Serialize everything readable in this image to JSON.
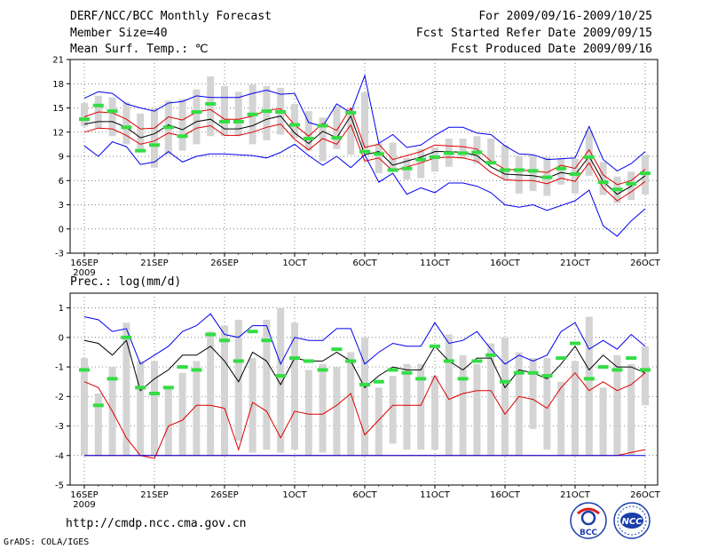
{
  "header": {
    "title": "DERF/NCC/BCC Monthly Forecast",
    "member_size": "Member Size=40",
    "variable": "Mean Surf. Temp.: ℃",
    "period": "For 2009/09/16-2009/10/25",
    "started": "Fcst Started Refer Date 2009/09/15",
    "produced": "Fcst Produced Date 2009/09/16"
  },
  "footer": {
    "url": "http://cmdp.ncc.cma.gov.cn",
    "credit": "GrADS: COLA/IGES",
    "logo_bcc": "BCC",
    "logo_ncc": "NCC"
  },
  "colors": {
    "box": "#d4d4d4",
    "green": "#33dd44",
    "blue": "#0000ee",
    "red": "#dd0000",
    "black": "#000000"
  },
  "chart_data": [
    {
      "type": "line",
      "title": "Mean Surf. Temp.: ℃",
      "ylim": [
        -3,
        21
      ],
      "yticks": [
        21,
        18,
        15,
        12,
        9,
        6,
        3,
        0,
        -3
      ],
      "x_ticks": [
        {
          "day": 1,
          "label": "16SEP",
          "sublabel": "2009"
        },
        {
          "day": 6,
          "label": "21SEP"
        },
        {
          "day": 11,
          "label": "26SEP"
        },
        {
          "day": 16,
          "label": "1OCT"
        },
        {
          "day": 21,
          "label": "6OCT"
        },
        {
          "day": 26,
          "label": "11OCT"
        },
        {
          "day": 31,
          "label": "16OCT"
        },
        {
          "day": 36,
          "label": "21OCT"
        },
        {
          "day": 41,
          "label": "26OCT"
        }
      ],
      "grid": true,
      "boxes": [
        [
          12.7,
          15.6
        ],
        [
          12.4,
          16.5
        ],
        [
          11.5,
          16.3
        ],
        [
          10.5,
          15.7
        ],
        [
          9.7,
          14.3
        ],
        [
          7.6,
          15.0
        ],
        [
          9.2,
          15.9
        ],
        [
          9.7,
          16.1
        ],
        [
          10.5,
          17.3
        ],
        [
          11.5,
          18.9
        ],
        [
          11.5,
          17.7
        ],
        [
          11.5,
          17.0
        ],
        [
          10.5,
          17.9
        ],
        [
          11.0,
          17.7
        ],
        [
          11.7,
          17.5
        ],
        [
          11.3,
          15.5
        ],
        [
          9.7,
          14.6
        ],
        [
          8.4,
          13.8
        ],
        [
          9.9,
          15.2
        ],
        [
          9.2,
          15.0
        ],
        [
          9.9,
          16.9
        ],
        [
          6.9,
          10.6
        ],
        [
          7.4,
          10.7
        ],
        [
          6.1,
          8.8
        ],
        [
          6.3,
          9.9
        ],
        [
          7.1,
          10.1
        ],
        [
          7.7,
          11.2
        ],
        [
          8.7,
          11.2
        ],
        [
          8.1,
          11.5
        ],
        [
          8.2,
          11.2
        ],
        [
          6.2,
          10.4
        ],
        [
          4.4,
          9.1
        ],
        [
          4.7,
          9.2
        ],
        [
          4.1,
          8.9
        ],
        [
          5.5,
          8.8
        ],
        [
          4.4,
          8.7
        ],
        [
          6.6,
          12.2
        ],
        [
          4.2,
          8.3
        ],
        [
          3.2,
          6.5
        ],
        [
          3.6,
          7.1
        ],
        [
          4.3,
          9.2
        ]
      ],
      "series": [
        {
          "name": "ensemble mean",
          "color": "green",
          "style": "marker",
          "values": [
            13.6,
            15.3,
            14.6,
            12.6,
            9.7,
            10.4,
            12.6,
            11.5,
            14.5,
            15.5,
            13.3,
            13.3,
            14.2,
            14.6,
            14.5,
            12.9,
            11.2,
            12.8,
            11.3,
            14.4,
            9.6,
            9.3,
            7.3,
            7.5,
            8.6,
            8.9,
            9.4,
            9.4,
            9.5,
            8.2,
            7.3,
            7.3,
            7.2,
            6.4,
            7.5,
            6.8,
            8.9,
            5.8,
            4.9,
            5.6,
            6.9
          ]
        },
        {
          "name": "blue max",
          "color": "blue",
          "style": "line",
          "values": [
            16.2,
            17.0,
            16.8,
            15.5,
            15.0,
            14.6,
            15.6,
            15.8,
            16.5,
            16.3,
            16.3,
            16.3,
            16.8,
            17.2,
            16.7,
            16.8,
            13.2,
            12.7,
            15.5,
            14.4,
            19.0,
            10.6,
            11.7,
            10.1,
            10.4,
            11.6,
            12.6,
            12.6,
            11.9,
            11.7,
            10.3,
            9.3,
            9.2,
            8.6,
            8.7,
            8.8,
            12.7,
            8.6,
            7.2,
            8.1,
            9.6
          ]
        },
        {
          "name": "red upper",
          "color": "red",
          "style": "line",
          "values": [
            13.9,
            14.5,
            14.4,
            13.6,
            12.4,
            12.5,
            13.9,
            13.5,
            14.5,
            14.8,
            13.6,
            13.6,
            14.0,
            14.7,
            14.9,
            12.9,
            11.5,
            13.1,
            12.2,
            15.0,
            10.1,
            10.5,
            8.6,
            9.1,
            9.6,
            10.4,
            10.3,
            10.2,
            9.9,
            8.4,
            7.4,
            7.3,
            7.2,
            7.0,
            7.9,
            7.5,
            9.8,
            6.7,
            5.5,
            6.0,
            7.4
          ]
        },
        {
          "name": "black mean",
          "color": "black",
          "style": "line",
          "values": [
            13.0,
            13.3,
            13.3,
            12.6,
            11.3,
            11.8,
            12.9,
            12.3,
            13.3,
            13.6,
            12.4,
            12.4,
            12.8,
            13.6,
            14.0,
            11.9,
            10.6,
            12.1,
            11.3,
            14.0,
            9.2,
            9.6,
            7.9,
            8.4,
            8.9,
            9.6,
            9.6,
            9.5,
            9.1,
            7.7,
            6.8,
            6.7,
            6.6,
            6.3,
            7.0,
            6.7,
            9.0,
            5.9,
            4.3,
            5.3,
            6.6
          ]
        },
        {
          "name": "red lower",
          "color": "red",
          "style": "line",
          "values": [
            12.0,
            12.5,
            12.4,
            11.6,
            10.5,
            10.9,
            11.9,
            11.5,
            12.5,
            12.8,
            11.6,
            11.6,
            12.0,
            12.6,
            13.0,
            11.1,
            9.8,
            11.2,
            10.5,
            12.9,
            8.4,
            8.8,
            7.2,
            7.7,
            8.2,
            8.8,
            8.9,
            8.8,
            8.4,
            7.0,
            6.1,
            6.0,
            6.0,
            5.6,
            6.3,
            5.9,
            8.2,
            5.1,
            3.5,
            4.6,
            5.9
          ]
        },
        {
          "name": "blue min",
          "color": "blue",
          "style": "line",
          "values": [
            10.3,
            9.0,
            10.8,
            10.2,
            8.0,
            8.3,
            9.6,
            8.3,
            9.0,
            9.3,
            9.3,
            9.2,
            9.1,
            8.8,
            9.5,
            10.5,
            9.1,
            7.9,
            9.0,
            7.6,
            9.2,
            5.8,
            6.9,
            4.3,
            5.1,
            4.5,
            5.7,
            5.7,
            5.3,
            4.5,
            3.0,
            2.7,
            3.0,
            2.3,
            2.9,
            3.5,
            4.8,
            0.4,
            -0.9,
            1.0,
            2.5
          ]
        }
      ]
    },
    {
      "type": "line",
      "title": "Prec.: log(mm/d)",
      "ylim": [
        -5,
        1.5
      ],
      "yticks": [
        1,
        0,
        -1,
        -2,
        -3,
        -4,
        -5
      ],
      "x_ticks": [
        {
          "day": 1,
          "label": "16SEP",
          "sublabel": "2009"
        },
        {
          "day": 6,
          "label": "21SEP"
        },
        {
          "day": 11,
          "label": "26SEP"
        },
        {
          "day": 16,
          "label": "1OCT"
        },
        {
          "day": 21,
          "label": "6OCT"
        },
        {
          "day": 26,
          "label": "11OCT"
        },
        {
          "day": 31,
          "label": "16OCT"
        },
        {
          "day": 36,
          "label": "21OCT"
        },
        {
          "day": 41,
          "label": "26OCT"
        }
      ],
      "grid": true,
      "boxes": [
        [
          -4,
          -0.7
        ],
        [
          -4,
          -1.9
        ],
        [
          -4,
          -1.0
        ],
        [
          -4,
          0.5
        ],
        [
          -4,
          -0.8
        ],
        [
          -4,
          -0.8
        ],
        [
          -4,
          -1.7
        ],
        [
          -4,
          -1.2
        ],
        [
          -4,
          -0.8
        ],
        [
          -4,
          0.2
        ],
        [
          -4,
          0.4
        ],
        [
          -3.5,
          0.6
        ],
        [
          -3.9,
          -0.7
        ],
        [
          -3.8,
          0.6
        ],
        [
          -3.9,
          1.0
        ],
        [
          -3.8,
          0.5
        ],
        [
          -4,
          -1.1
        ],
        [
          -3.9,
          -0.9
        ],
        [
          -4,
          -1.0
        ],
        [
          -4,
          -0.5
        ],
        [
          -4,
          0.0
        ],
        [
          -4,
          -1.7
        ],
        [
          -3.6,
          -1.3
        ],
        [
          -3.8,
          -0.9
        ],
        [
          -3.8,
          -0.9
        ],
        [
          -3.8,
          -1.3
        ],
        [
          -4,
          0.1
        ],
        [
          -4,
          -0.6
        ],
        [
          -4,
          -0.9
        ],
        [
          -4,
          -0.2
        ],
        [
          -4,
          0.0
        ],
        [
          -4,
          -0.5
        ],
        [
          -3.1,
          -0.7
        ],
        [
          -3.8,
          -0.7
        ],
        [
          -4,
          -1.5
        ],
        [
          -4,
          -0.8
        ],
        [
          -4,
          0.7
        ],
        [
          -4,
          -1.7
        ],
        [
          -4,
          -0.6
        ],
        [
          -4,
          -0.9
        ],
        [
          -2.3,
          -0.3
        ]
      ],
      "series": [
        {
          "name": "ensemble mean",
          "color": "green",
          "style": "marker",
          "values": [
            -1.1,
            -2.3,
            -1.4,
            0.0,
            -1.7,
            -1.9,
            -1.7,
            -1.0,
            -1.1,
            0.1,
            -0.1,
            -0.8,
            0.2,
            -0.1,
            -1.3,
            -0.7,
            -0.8,
            -1.1,
            -0.4,
            -0.8,
            -1.6,
            -1.5,
            -1.1,
            -1.2,
            -1.4,
            -0.3,
            -0.8,
            -1.4,
            -0.8,
            -0.6,
            -1.5,
            -1.2,
            -1.2,
            -1.3,
            -0.7,
            -0.2,
            -1.4,
            -1.0,
            -1.1,
            -0.7,
            -1.1
          ]
        },
        {
          "name": "blue max",
          "color": "blue",
          "style": "line",
          "values": [
            0.7,
            0.6,
            0.2,
            0.3,
            -0.9,
            -0.6,
            -0.3,
            0.2,
            0.4,
            0.8,
            0.1,
            0.0,
            0.4,
            0.4,
            -0.9,
            0.0,
            -0.1,
            -0.1,
            0.3,
            0.3,
            -0.9,
            -0.5,
            -0.2,
            -0.3,
            -0.3,
            0.5,
            -0.2,
            -0.1,
            0.2,
            -0.4,
            -0.9,
            -0.6,
            -0.8,
            -0.6,
            0.2,
            0.5,
            -0.4,
            -0.1,
            -0.4,
            0.1,
            -0.3
          ]
        },
        {
          "name": "black mean",
          "color": "black",
          "style": "line",
          "values": [
            -0.1,
            -0.2,
            -0.6,
            -0.1,
            -1.8,
            -1.4,
            -1.1,
            -0.6,
            -0.6,
            -0.3,
            -0.8,
            -1.5,
            -0.5,
            -0.8,
            -1.6,
            -0.7,
            -0.8,
            -0.8,
            -0.5,
            -0.8,
            -1.7,
            -1.3,
            -1.0,
            -1.1,
            -1.1,
            -0.3,
            -0.8,
            -1.1,
            -0.7,
            -0.7,
            -1.7,
            -1.1,
            -1.2,
            -1.4,
            -0.9,
            -0.3,
            -1.1,
            -0.6,
            -1.0,
            -1.0,
            -1.2
          ]
        },
        {
          "name": "red lower",
          "color": "red",
          "style": "line",
          "values": [
            -1.5,
            -1.7,
            -2.5,
            -3.4,
            -4.0,
            -4.1,
            -3.0,
            -2.8,
            -2.3,
            -2.3,
            -2.4,
            -3.8,
            -2.2,
            -2.5,
            -3.4,
            -2.5,
            -2.6,
            -2.6,
            -2.3,
            -1.9,
            -3.3,
            -2.8,
            -2.3,
            -2.3,
            -2.3,
            -1.3,
            -2.1,
            -1.9,
            -1.8,
            -1.8,
            -2.6,
            -2.0,
            -2.1,
            -2.4,
            -1.7,
            -1.2,
            -1.8,
            -1.5,
            -1.8,
            -1.6,
            -1.2
          ]
        },
        {
          "name": "red floor",
          "color": "red",
          "style": "line",
          "values": [
            -4,
            -4,
            -4,
            -4,
            -4,
            -4,
            -4,
            -4,
            -4,
            -4,
            -4,
            -4,
            -4,
            -4,
            -4,
            -4,
            -4,
            -4,
            -4,
            -4,
            -4,
            -4,
            -4,
            -4,
            -4,
            -4,
            -4,
            -4,
            -4,
            -4,
            -4,
            -4,
            -4,
            -4,
            -4,
            -4,
            -4,
            -4,
            -4,
            -3.9,
            -3.8
          ]
        },
        {
          "name": "blue min",
          "color": "blue",
          "style": "line",
          "values": [
            -4,
            -4,
            -4,
            -4,
            -4,
            -4,
            -4,
            -4,
            -4,
            -4,
            -4,
            -4,
            -4,
            -4,
            -4,
            -4,
            -4,
            -4,
            -4,
            -4,
            -4,
            -4,
            -4,
            -4,
            -4,
            -4,
            -4,
            -4,
            -4,
            -4,
            -4,
            -4,
            -4,
            -4,
            -4,
            -4,
            -4,
            -4,
            -4,
            -4,
            -4
          ]
        }
      ]
    }
  ]
}
